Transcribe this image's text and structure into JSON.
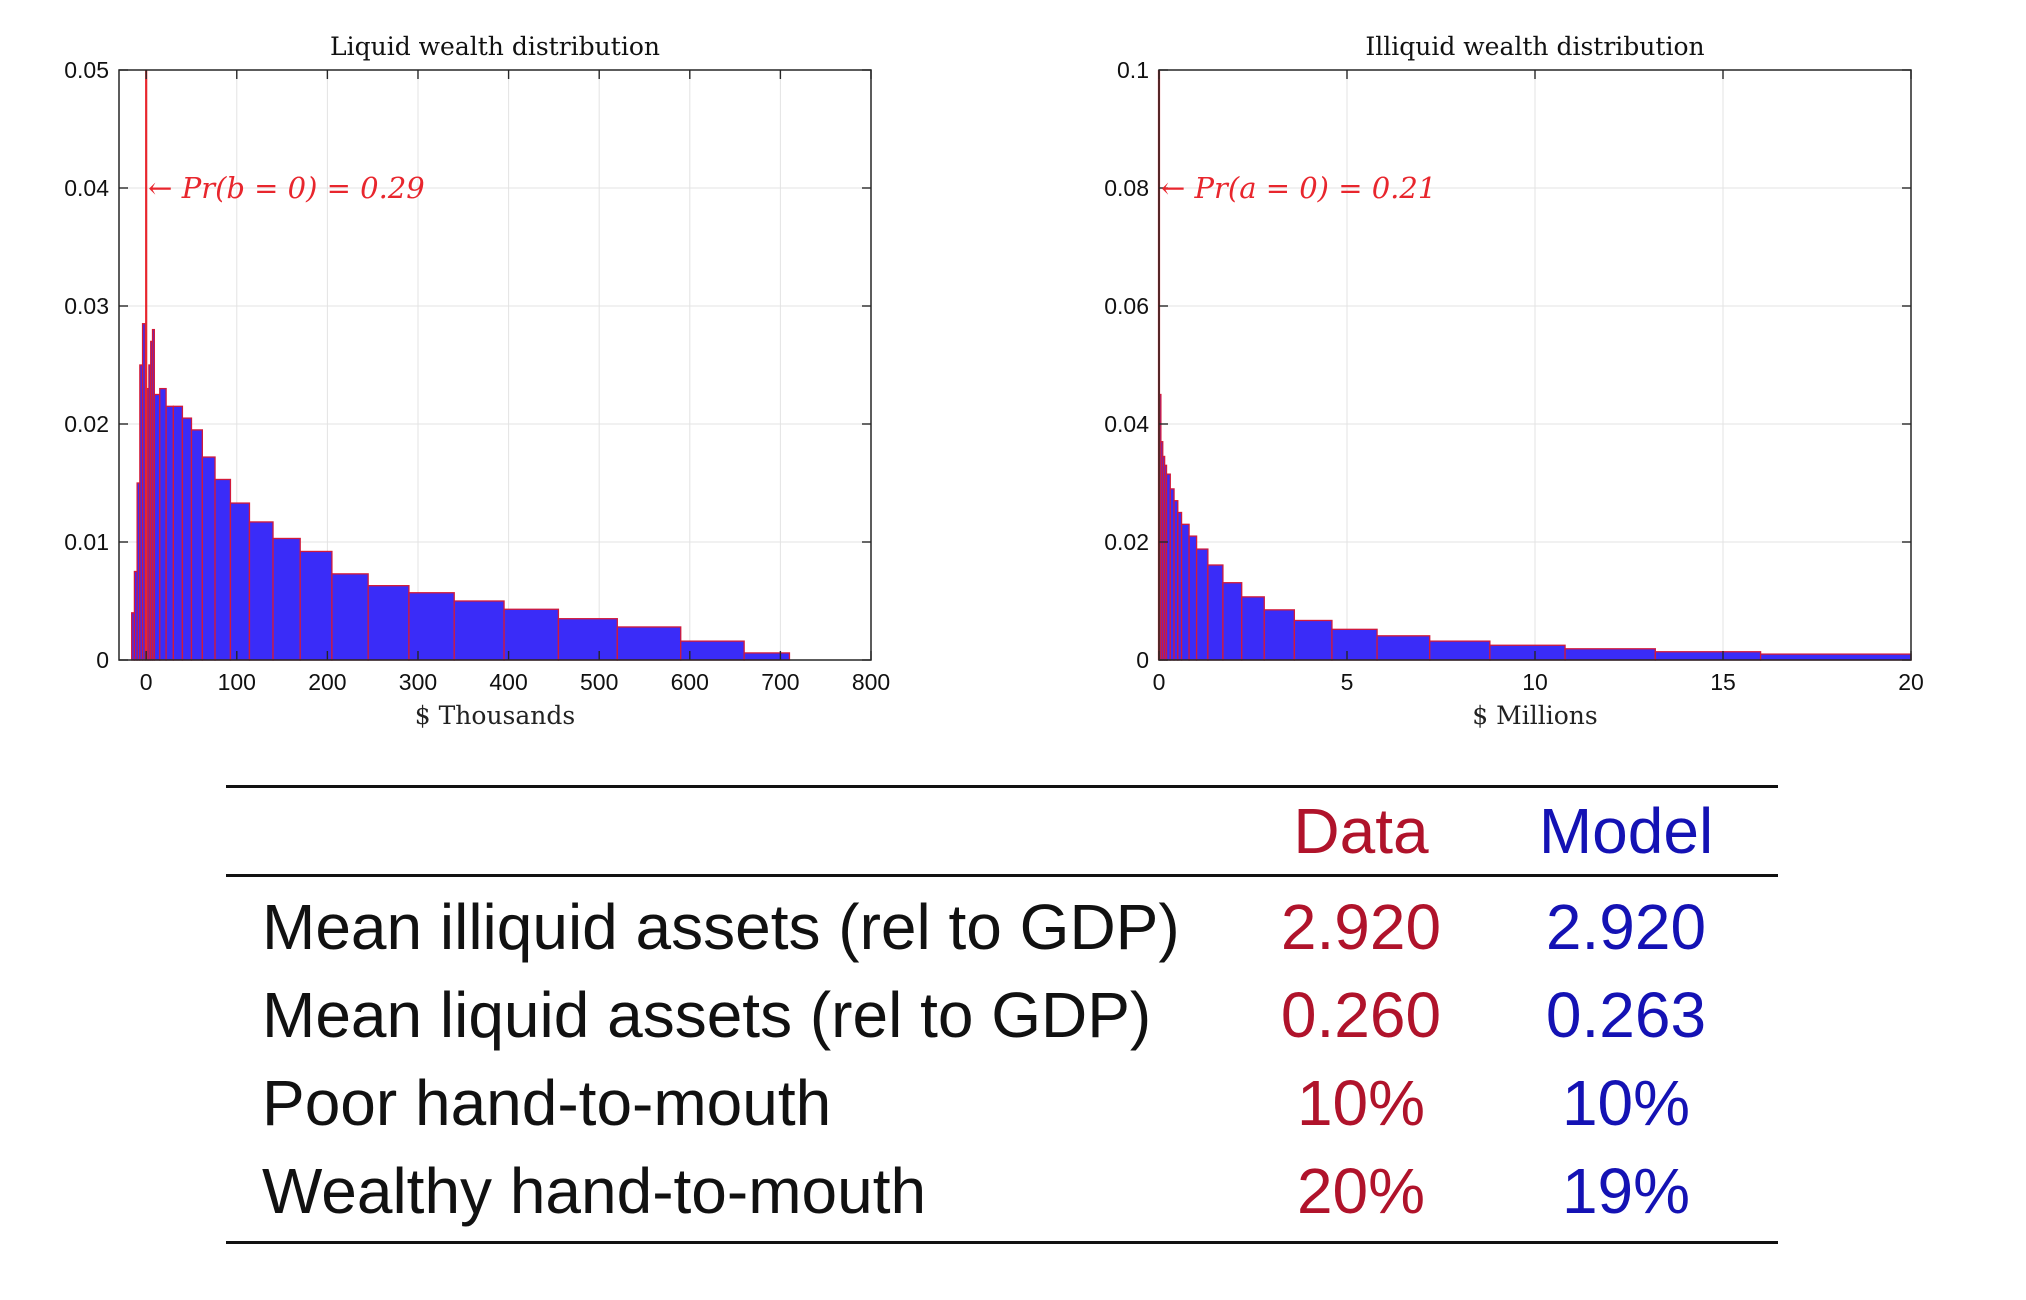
{
  "chart_data": [
    {
      "type": "bar",
      "title": "Liquid wealth distribution",
      "xlabel": "$ Thousands",
      "ylabel": "",
      "xlim": [
        -30,
        800
      ],
      "ylim": [
        0,
        0.05
      ],
      "xticks": [
        0,
        100,
        200,
        300,
        400,
        500,
        600,
        700,
        800
      ],
      "yticks": [
        0,
        0.01,
        0.02,
        0.03,
        0.04,
        0.05
      ],
      "grid": true,
      "annotation": {
        "text": "← Pr(b = 0) = 0.29",
        "x": 0,
        "y": 0.04
      },
      "spike": {
        "x": 0,
        "y": 0.29
      },
      "bars": [
        [
          -16,
          -13,
          0.004
        ],
        [
          -13,
          -10,
          0.0075
        ],
        [
          -10,
          -7,
          0.015
        ],
        [
          -7,
          -4,
          0.025
        ],
        [
          -4,
          -1,
          0.0285
        ],
        [
          -1,
          1,
          0.012
        ],
        [
          1,
          3,
          0.023
        ],
        [
          3,
          5,
          0.025
        ],
        [
          5,
          7,
          0.027
        ],
        [
          7,
          9,
          0.028
        ],
        [
          9,
          15,
          0.0225
        ],
        [
          15,
          22,
          0.023
        ],
        [
          22,
          30,
          0.0215
        ],
        [
          30,
          40,
          0.0215
        ],
        [
          40,
          50,
          0.0205
        ],
        [
          50,
          62,
          0.0195
        ],
        [
          62,
          76,
          0.0172
        ],
        [
          76,
          93,
          0.0153
        ],
        [
          93,
          114,
          0.0133
        ],
        [
          114,
          140,
          0.0117
        ],
        [
          140,
          170,
          0.0103
        ],
        [
          170,
          205,
          0.0092
        ],
        [
          205,
          245,
          0.0073
        ],
        [
          245,
          290,
          0.0063
        ],
        [
          290,
          340,
          0.0057
        ],
        [
          340,
          395,
          0.005
        ],
        [
          395,
          455,
          0.0043
        ],
        [
          455,
          520,
          0.0035
        ],
        [
          520,
          590,
          0.0028
        ],
        [
          590,
          660,
          0.0016
        ],
        [
          660,
          710,
          0.0006
        ]
      ]
    },
    {
      "type": "bar",
      "title": "Illiquid wealth distribution",
      "xlabel": "$ Millions",
      "ylabel": "",
      "xlim": [
        0,
        20
      ],
      "ylim": [
        0,
        0.1
      ],
      "xticks": [
        0,
        5,
        10,
        15,
        20
      ],
      "yticks": [
        0,
        0.02,
        0.04,
        0.06,
        0.08,
        0.1
      ],
      "grid": true,
      "annotation": {
        "text": "← Pr(a = 0) = 0.21",
        "x": 0,
        "y": 0.08
      },
      "spike": {
        "x": 0,
        "y": 0.21
      },
      "bars": [
        [
          0,
          0.05,
          0.045
        ],
        [
          0.05,
          0.1,
          0.037
        ],
        [
          0.1,
          0.15,
          0.0345
        ],
        [
          0.15,
          0.2,
          0.033
        ],
        [
          0.2,
          0.3,
          0.0315
        ],
        [
          0.3,
          0.4,
          0.029
        ],
        [
          0.4,
          0.5,
          0.027
        ],
        [
          0.5,
          0.6,
          0.025
        ],
        [
          0.6,
          0.8,
          0.023
        ],
        [
          0.8,
          1.0,
          0.021
        ],
        [
          1.0,
          1.3,
          0.0188
        ],
        [
          1.3,
          1.7,
          0.0161
        ],
        [
          1.7,
          2.2,
          0.0131
        ],
        [
          2.2,
          2.8,
          0.0107
        ],
        [
          2.8,
          3.6,
          0.0085
        ],
        [
          3.6,
          4.6,
          0.0067
        ],
        [
          4.6,
          5.8,
          0.0052
        ],
        [
          5.8,
          7.2,
          0.0041
        ],
        [
          7.2,
          8.8,
          0.0032
        ],
        [
          8.8,
          10.8,
          0.0025
        ],
        [
          10.8,
          13.2,
          0.0019
        ],
        [
          13.2,
          16,
          0.0014
        ],
        [
          16,
          20,
          0.001
        ]
      ]
    }
  ],
  "colors": {
    "bar_fill": "#3a2cf8",
    "bar_edge": "#d21a3a",
    "spike": "#e8262d",
    "data_col": "#b0132b",
    "model_col": "#1412b4"
  },
  "table": {
    "headers": {
      "data": "Data",
      "model": "Model"
    },
    "rows": [
      {
        "label": "Mean illiquid assets (rel to GDP)",
        "data": "2.920",
        "model": "2.920"
      },
      {
        "label": "Mean liquid assets (rel to GDP)",
        "data": "0.260",
        "model": "0.263"
      },
      {
        "label": "Poor hand-to-mouth",
        "data": "10%",
        "model": "10%"
      },
      {
        "label": "Wealthy hand-to-mouth",
        "data": "20%",
        "model": "19%"
      }
    ]
  }
}
